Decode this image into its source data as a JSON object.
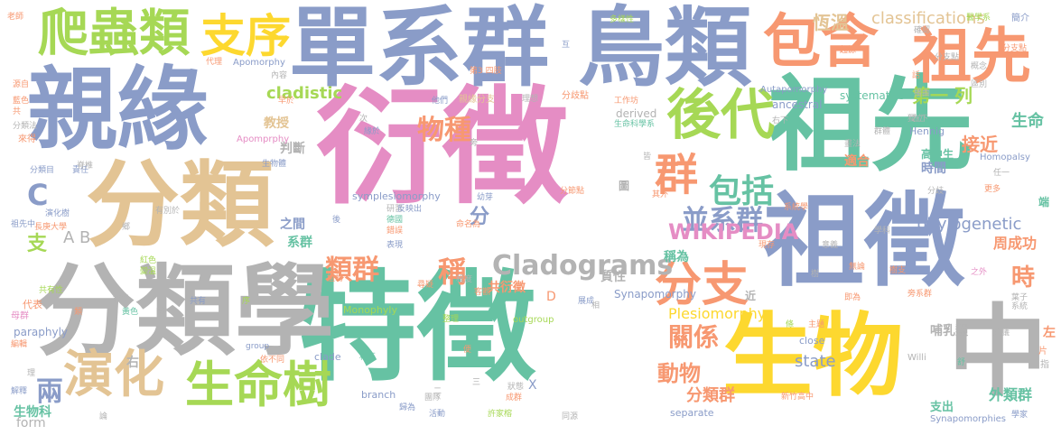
{
  "colors": {
    "blue": "#8a9cc8",
    "pink": "#e58dc4",
    "green": "#66c2a3",
    "orange": "#f79871",
    "lime": "#a6d855",
    "tan": "#e3c494",
    "gray": "#b3b3b3",
    "yellow": "#fdd82f"
  },
  "words": [
    {
      "text": "衍徵",
      "color": "pink"
    },
    {
      "text": "特徵",
      "color": "green"
    },
    {
      "text": "祖先",
      "color": "green"
    },
    {
      "text": "親緣",
      "color": "blue"
    },
    {
      "text": "分類",
      "color": "tan"
    },
    {
      "text": "分類學",
      "color": "gray"
    },
    {
      "text": "單系群",
      "color": "blue"
    },
    {
      "text": "鳥類",
      "color": "blue"
    },
    {
      "text": "祖徵",
      "color": "blue"
    },
    {
      "text": "生物",
      "color": "yellow"
    },
    {
      "text": "中",
      "color": "gray"
    },
    {
      "text": "爬蟲類",
      "color": "lime"
    },
    {
      "text": "支序",
      "color": "yellow"
    },
    {
      "text": "包含",
      "color": "orange"
    },
    {
      "text": "祖先",
      "color": "orange"
    },
    {
      "text": "後代",
      "color": "lime"
    },
    {
      "text": "群",
      "color": "orange"
    },
    {
      "text": "包括",
      "color": "green"
    },
    {
      "text": "演化",
      "color": "tan"
    },
    {
      "text": "生命樹",
      "color": "lime"
    },
    {
      "text": "分支",
      "color": "orange"
    },
    {
      "text": "並系群",
      "color": "blue"
    },
    {
      "text": "WIKIPEDIA",
      "color": "pink"
    },
    {
      "text": "Cladograms",
      "color": "gray"
    },
    {
      "text": "classifications",
      "color": "tan"
    },
    {
      "text": "phylogenetic",
      "color": "blue"
    },
    {
      "text": "cladistic",
      "color": "lime"
    },
    {
      "text": "物種",
      "color": "orange"
    },
    {
      "text": "類群",
      "color": "orange"
    },
    {
      "text": "稱",
      "color": "orange"
    },
    {
      "text": "關係",
      "color": "orange"
    },
    {
      "text": "動物",
      "color": "orange"
    },
    {
      "text": "兩",
      "color": "blue"
    },
    {
      "text": "第一 列",
      "color": "lime"
    },
    {
      "text": "接近",
      "color": "orange"
    },
    {
      "text": "生命",
      "color": "green"
    },
    {
      "text": "時",
      "color": "orange"
    },
    {
      "text": "周成功",
      "color": "orange"
    },
    {
      "text": "分類群",
      "color": "orange"
    },
    {
      "text": "外類群",
      "color": "green"
    },
    {
      "text": "Plesiomorphy",
      "color": "yellow"
    },
    {
      "text": "state",
      "color": "blue"
    },
    {
      "text": "恆溫",
      "color": "tan"
    },
    {
      "text": "時間",
      "color": "blue"
    },
    {
      "text": "高中生",
      "color": "green"
    },
    {
      "text": "哺乳類",
      "color": "gray"
    },
    {
      "text": "共衍徵",
      "color": "orange"
    },
    {
      "text": "分",
      "color": "blue"
    },
    {
      "text": "支",
      "color": "lime"
    },
    {
      "text": "C",
      "color": "blue"
    },
    {
      "text": "A B",
      "color": "gray"
    },
    {
      "text": "教授",
      "color": "tan"
    },
    {
      "text": "判斷",
      "color": "gray"
    },
    {
      "text": "系群",
      "color": "green"
    },
    {
      "text": "之間",
      "color": "blue"
    },
    {
      "text": "稱為",
      "color": "green"
    },
    {
      "text": "適合",
      "color": "orange"
    },
    {
      "text": "質性",
      "color": "gray"
    },
    {
      "text": "生物科",
      "color": "green"
    },
    {
      "text": "支出",
      "color": "green"
    },
    {
      "text": "form",
      "color": "gray"
    },
    {
      "text": "symplesiomorphy",
      "color": "blue"
    },
    {
      "text": "Synapomorphy",
      "color": "blue"
    },
    {
      "text": "Monophyly",
      "color": "lime"
    },
    {
      "text": "Apomorphy",
      "color": "blue"
    },
    {
      "text": "Autapomorphy",
      "color": "blue"
    },
    {
      "text": "systematics",
      "color": "green"
    },
    {
      "text": "ancestral",
      "color": "blue"
    },
    {
      "text": "derived",
      "color": "gray"
    },
    {
      "text": "Hennig",
      "color": "blue"
    },
    {
      "text": "outgroup",
      "color": "lime"
    },
    {
      "text": "paraphyly",
      "color": "blue"
    },
    {
      "text": "branch",
      "color": "blue"
    },
    {
      "text": "clade",
      "color": "blue"
    },
    {
      "text": "close",
      "color": "blue"
    },
    {
      "text": "separate",
      "color": "blue"
    },
    {
      "text": "Synapomorphies",
      "color": "blue"
    },
    {
      "text": "Homopalsy",
      "color": "blue"
    },
    {
      "text": "Apomprphy",
      "color": "pink"
    },
    {
      "text": "Willi",
      "color": "gray"
    },
    {
      "text": "D",
      "color": "orange"
    },
    {
      "text": "X",
      "color": "blue"
    },
    {
      "text": "右",
      "color": "gray"
    },
    {
      "text": "左",
      "color": "orange"
    },
    {
      "text": "近",
      "color": "gray"
    },
    {
      "text": "端",
      "color": "green"
    },
    {
      "text": "圖",
      "color": "gray"
    },
    {
      "text": "親緣分支",
      "color": "tan"
    },
    {
      "text": "分歧點",
      "color": "orange"
    },
    {
      "text": "生物體",
      "color": "blue"
    },
    {
      "text": "研習",
      "color": "gray"
    },
    {
      "text": "反映出",
      "color": "blue"
    },
    {
      "text": "演化樹",
      "color": "blue"
    },
    {
      "text": "長庚大學",
      "color": "orange"
    },
    {
      "text": "有別於",
      "color": "gray"
    },
    {
      "text": "分類目",
      "color": "blue"
    },
    {
      "text": "紅色",
      "color": "lime"
    },
    {
      "text": "變溫",
      "color": "lime"
    },
    {
      "text": "共有性",
      "color": "lime"
    },
    {
      "text": "代表",
      "color": "orange"
    },
    {
      "text": "教學",
      "color": "gray"
    },
    {
      "text": "母群",
      "color": "pink"
    },
    {
      "text": "編輯",
      "color": "orange"
    },
    {
      "text": "解釋",
      "color": "blue"
    },
    {
      "text": "主題",
      "color": "orange"
    },
    {
      "text": "相互",
      "color": "green"
    },
    {
      "text": "狀態",
      "color": "gray"
    },
    {
      "text": "團隊",
      "color": "gray"
    },
    {
      "text": "成群",
      "color": "orange"
    },
    {
      "text": "活動",
      "color": "blue"
    },
    {
      "text": "同源",
      "color": "gray"
    },
    {
      "text": "許家榕",
      "color": "lime"
    },
    {
      "text": "新竹高中",
      "color": "orange"
    },
    {
      "text": "學家",
      "color": "blue"
    },
    {
      "text": "樹支",
      "color": "orange"
    },
    {
      "text": "即為",
      "color": "orange"
    },
    {
      "text": "無論",
      "color": "orange"
    },
    {
      "text": "學科",
      "color": "gray"
    },
    {
      "text": "意義",
      "color": "gray"
    },
    {
      "text": "祖先中",
      "color": "blue"
    },
    {
      "text": "獨立",
      "color": "gray"
    },
    {
      "text": "更多",
      "color": "orange"
    },
    {
      "text": "任一",
      "color": "gray"
    },
    {
      "text": "分歧",
      "color": "gray"
    },
    {
      "text": "群體",
      "color": "gray"
    },
    {
      "text": "起源",
      "color": "orange"
    },
    {
      "text": "多樣性",
      "color": "lime"
    },
    {
      "text": "工作坊",
      "color": "orange"
    },
    {
      "text": "生命科學系",
      "color": "green"
    },
    {
      "text": "醫學系",
      "color": "lime"
    },
    {
      "text": "簡介",
      "color": "blue"
    },
    {
      "text": "老師",
      "color": "orange"
    },
    {
      "text": "代理",
      "color": "orange"
    },
    {
      "text": "內容",
      "color": "gray"
    },
    {
      "text": "早於",
      "color": "orange"
    },
    {
      "text": "他們",
      "color": "blue"
    },
    {
      "text": "理想",
      "color": "gray"
    },
    {
      "text": "話",
      "color": "orange"
    },
    {
      "text": "播曲",
      "color": "gray"
    },
    {
      "text": "幼芽",
      "color": "blue"
    },
    {
      "text": "其外",
      "color": "orange"
    },
    {
      "text": "現存",
      "color": "orange"
    },
    {
      "text": "旁系群",
      "color": "orange"
    },
    {
      "text": "葉子",
      "color": "gray"
    },
    {
      "text": "系統",
      "color": "gray"
    },
    {
      "text": "植物",
      "color": "orange"
    },
    {
      "text": "程度",
      "color": "gray"
    },
    {
      "text": "客觀",
      "color": "orange"
    },
    {
      "text": "展成",
      "color": "blue"
    },
    {
      "text": "尋疑",
      "color": "orange"
    },
    {
      "text": "類",
      "color": "orange"
    },
    {
      "text": "黃色",
      "color": "green"
    },
    {
      "text": "責任",
      "color": "blue"
    },
    {
      "text": "藍色",
      "color": "orange"
    },
    {
      "text": "分類法",
      "color": "gray"
    },
    {
      "text": "區別",
      "color": "gray"
    },
    {
      "text": "確認",
      "color": "gray"
    },
    {
      "text": "分支點",
      "color": "gray"
    },
    {
      "text": "分節點",
      "color": "orange"
    },
    {
      "text": "系統學",
      "color": "orange"
    },
    {
      "text": "歸為",
      "color": "blue"
    },
    {
      "text": "依不同",
      "color": "orange"
    },
    {
      "text": "命名為",
      "color": "orange"
    },
    {
      "text": "錯誤",
      "color": "orange"
    },
    {
      "text": "表現",
      "color": "blue"
    },
    {
      "text": "德國",
      "color": "green"
    },
    {
      "text": "緣於",
      "color": "blue"
    },
    {
      "text": "之外",
      "color": "pink"
    },
    {
      "text": "整理",
      "color": "lime"
    },
    {
      "text": "group",
      "color": "blue"
    },
    {
      "text": "源自",
      "color": "orange"
    },
    {
      "text": "共",
      "color": "orange"
    },
    {
      "text": "來得",
      "color": "orange"
    },
    {
      "text": "共有",
      "color": "blue"
    },
    {
      "text": "系",
      "color": "gray"
    },
    {
      "text": "後",
      "color": "blue"
    },
    {
      "text": "相",
      "color": "gray"
    },
    {
      "text": "序",
      "color": "lime"
    },
    {
      "text": "便",
      "color": "orange"
    },
    {
      "text": "二",
      "color": "gray"
    },
    {
      "text": "三",
      "color": "gray"
    },
    {
      "text": "互",
      "color": "blue"
    },
    {
      "text": "次",
      "color": "gray"
    },
    {
      "text": "旁",
      "color": "gray"
    },
    {
      "text": "皆",
      "color": "gray"
    },
    {
      "text": "條",
      "color": "lime"
    },
    {
      "text": "第3 四肢",
      "color": "orange"
    },
    {
      "text": "左下",
      "color": "gray"
    },
    {
      "text": "右下",
      "color": "gray"
    },
    {
      "text": "畫法",
      "color": "gray"
    },
    {
      "text": "概念",
      "color": "gray"
    },
    {
      "text": "建議",
      "color": "gray"
    },
    {
      "text": "舒",
      "color": "green"
    },
    {
      "text": "片",
      "color": "orange"
    },
    {
      "text": "指",
      "color": "gray"
    },
    {
      "text": "理",
      "color": "gray"
    },
    {
      "text": "脊椎",
      "color": "gray"
    },
    {
      "text": "鄉",
      "color": "gray"
    },
    {
      "text": "論",
      "color": "gray"
    },
    {
      "text": "分支點",
      "color": "orange"
    },
    {
      "text": "樹",
      "color": "gray"
    }
  ]
}
